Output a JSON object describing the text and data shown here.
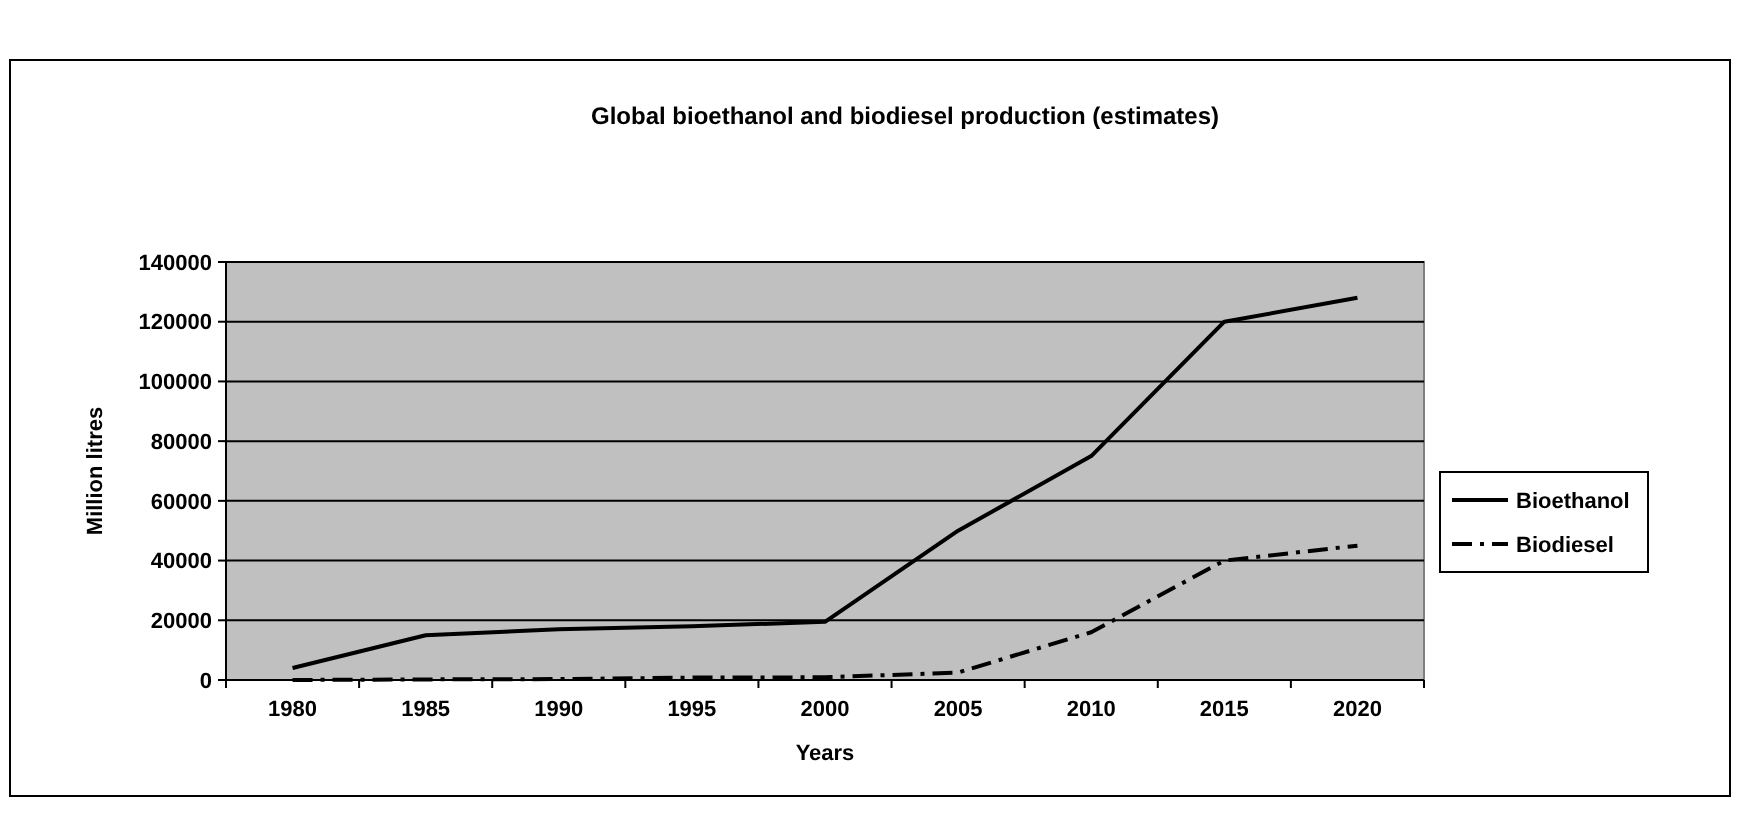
{
  "chart_data": {
    "type": "line",
    "title": "Global bioethanol and biodiesel production (estimates)",
    "xlabel": "Years",
    "ylabel": "Million litres",
    "categories": [
      "1980",
      "1985",
      "1990",
      "1995",
      "2000",
      "2005",
      "2010",
      "2015",
      "2020"
    ],
    "series": [
      {
        "name": "Bioethanol",
        "color": "#000000",
        "line_style": "solid",
        "values": [
          4000,
          15000,
          17000,
          18000,
          19500,
          50000,
          75000,
          120000,
          128000
        ]
      },
      {
        "name": "Biodiesel",
        "color": "#000000",
        "line_style": "dashed",
        "values": [
          0,
          200,
          300,
          800,
          900,
          2500,
          16000,
          40000,
          45000
        ]
      }
    ],
    "ylim": [
      0,
      140000
    ],
    "yticks": [
      0,
      20000,
      40000,
      60000,
      80000,
      100000,
      120000,
      140000
    ],
    "grid": "y",
    "legend": "right",
    "marker": "none"
  }
}
